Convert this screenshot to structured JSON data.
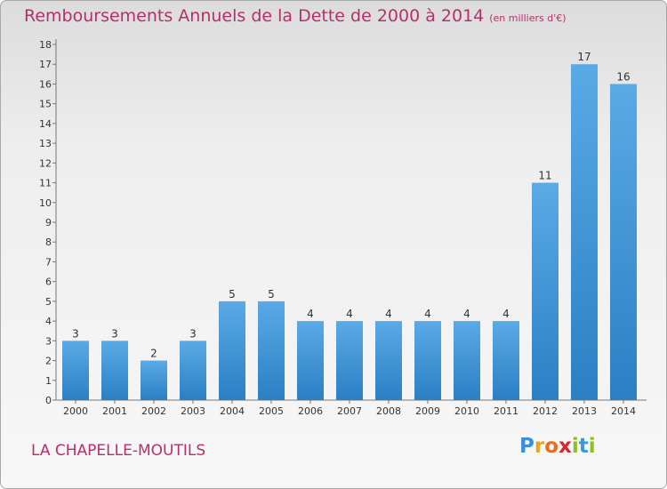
{
  "title": "Remboursements Annuels de la Dette de 2000 à 2014",
  "unit": "(en milliers d'€)",
  "commune": "LA CHAPELLE-MOUTILS",
  "logo": {
    "letters": [
      "P",
      "r",
      "o",
      "x",
      "i",
      "t",
      "i"
    ],
    "colors": [
      "#3b8fd9",
      "#f0a21a",
      "#e86d1f",
      "#d9262e",
      "#8cbf26",
      "#3a9ad9",
      "#8cbf26"
    ]
  },
  "colors": {
    "bar_light": "#5aaae6",
    "bar_dark": "#2b7fc3",
    "title": "#b5306b"
  },
  "chart_data": {
    "type": "bar",
    "title": "Remboursements Annuels de la Dette de 2000 à 2014",
    "xlabel": "",
    "ylabel": "",
    "categories": [
      "2000",
      "2001",
      "2002",
      "2003",
      "2004",
      "2005",
      "2006",
      "2007",
      "2008",
      "2009",
      "2010",
      "2011",
      "2012",
      "2013",
      "2014"
    ],
    "values": [
      3,
      3,
      2,
      3,
      5,
      5,
      4,
      4,
      4,
      4,
      4,
      4,
      11,
      17,
      16
    ],
    "ylim": [
      0,
      18
    ],
    "yticks": [
      "0",
      "1",
      "2",
      "3",
      "4",
      "5",
      "6",
      "7",
      "8",
      "9",
      "10",
      "11",
      "12",
      "13",
      "14",
      "15",
      "16",
      "17",
      "18"
    ],
    "grid": false,
    "legend": "none"
  }
}
